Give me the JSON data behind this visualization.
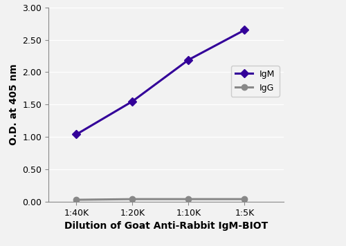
{
  "x_labels": [
    "1:40K",
    "1:20K",
    "1:10K",
    "1:5K"
  ],
  "x_values": [
    1,
    2,
    3,
    4
  ],
  "IgM_values": [
    1.04,
    1.55,
    2.19,
    2.65
  ],
  "IgG_values": [
    0.03,
    0.04,
    0.04,
    0.04
  ],
  "IgM_color": "#330099",
  "IgG_color": "#888888",
  "IgM_label": "IgM",
  "IgG_label": "IgG",
  "ylabel": "O.D. at 405 nm",
  "xlabel": "Dilution of Goat Anti-Rabbit IgM-BIOT",
  "ylim": [
    0.0,
    3.0
  ],
  "yticks": [
    0.0,
    0.5,
    1.0,
    1.5,
    2.0,
    2.5,
    3.0
  ],
  "ytick_labels": [
    "0.00",
    "0.50",
    "1.00",
    "1.50",
    "2.00",
    "2.50",
    "3.00"
  ],
  "marker_IgM": "D",
  "marker_IgG": "o",
  "linewidth": 2.2,
  "markersize_IgM": 6,
  "markersize_IgG": 6,
  "background_color": "#f2f2f2",
  "plot_bg_color": "#f2f2f2",
  "grid_color": "#ffffff",
  "spine_color": "#888888",
  "tick_fontsize": 9,
  "label_fontsize": 10,
  "legend_fontsize": 9
}
